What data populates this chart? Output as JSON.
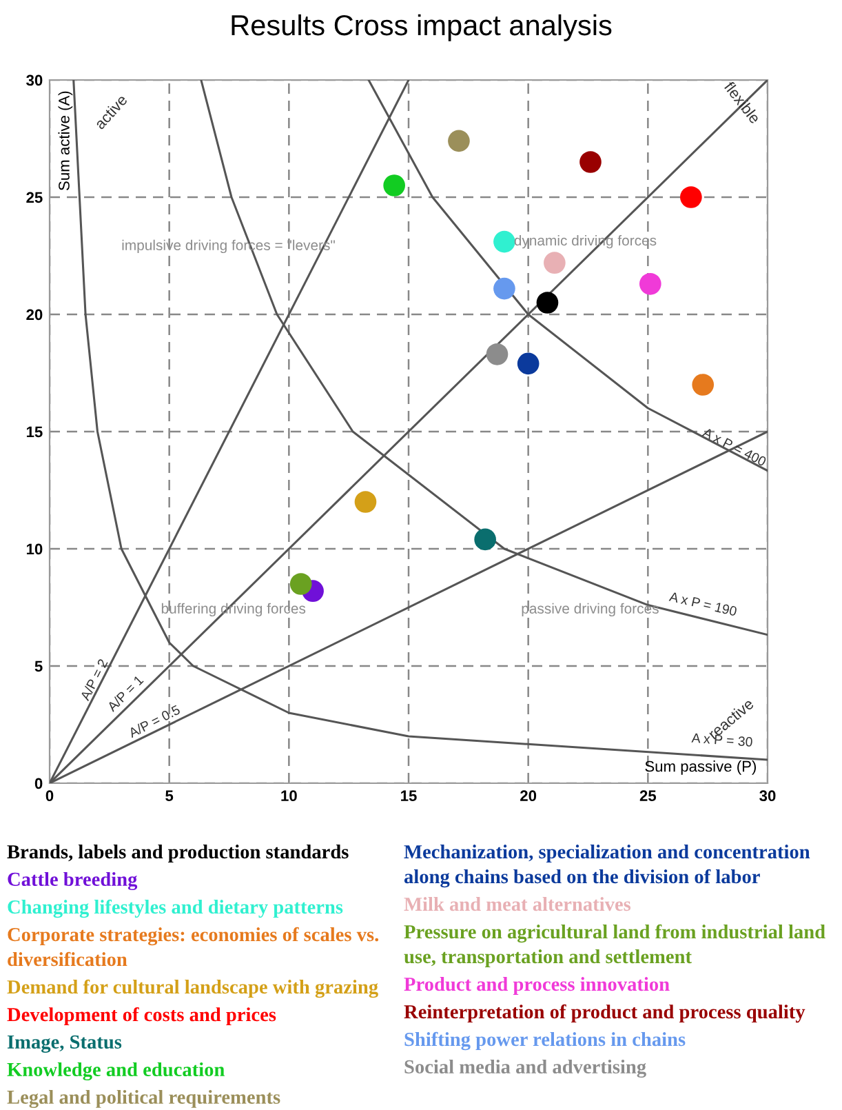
{
  "chart_data": {
    "type": "scatter",
    "title": "Results Cross impact analysis",
    "xlabel": "Sum passive (P)",
    "ylabel": "Sum active (A)",
    "xlim": [
      0,
      30
    ],
    "ylim": [
      0,
      30
    ],
    "xticks": [
      0,
      5,
      10,
      15,
      20,
      25,
      30
    ],
    "yticks": [
      0,
      5,
      10,
      15,
      20,
      25,
      30
    ],
    "grid": true,
    "legend": "bottom",
    "marker": "circle",
    "series": [
      {
        "name": "Brands, labels and production standards",
        "color": "#000000",
        "x": [
          20.8
        ],
        "values": [
          20.5
        ]
      },
      {
        "name": "Cattle breeding",
        "color": "#7010d8",
        "x": [
          11.0
        ],
        "values": [
          8.2
        ]
      },
      {
        "name": "Changing lifestyles and dietary patterns",
        "color": "#30f0d0",
        "x": [
          19.0
        ],
        "values": [
          23.1
        ]
      },
      {
        "name": "Corporate strategies: economies of scales vs. diversification",
        "color": "#e67a1e",
        "x": [
          27.3
        ],
        "values": [
          17.0
        ]
      },
      {
        "name": "Demand for cultural landscape with grazing",
        "color": "#d4a018",
        "x": [
          13.2
        ],
        "values": [
          12.0
        ]
      },
      {
        "name": "Development of costs and prices",
        "color": "#ff0000",
        "x": [
          26.8
        ],
        "values": [
          25.0
        ]
      },
      {
        "name": "Image, Status",
        "color": "#0a6e6e",
        "x": [
          18.2
        ],
        "values": [
          10.4
        ]
      },
      {
        "name": "Knowledge and education",
        "color": "#12cc22",
        "x": [
          14.4
        ],
        "values": [
          25.5
        ]
      },
      {
        "name": "Legal and political requirements",
        "color": "#9b8f5a",
        "x": [
          17.1
        ],
        "values": [
          27.4
        ]
      },
      {
        "name": "Mechanization, specialization and concentration along chains based on the division of labor",
        "color": "#0b3a9c",
        "x": [
          20.0
        ],
        "values": [
          17.9
        ]
      },
      {
        "name": "Milk and meat alternatives",
        "color": "#e8b0b4",
        "x": [
          21.1
        ],
        "values": [
          22.2
        ]
      },
      {
        "name": "Pressure on agricultural land from industrial land use, transportation and settlement",
        "color": "#6aa121",
        "x": [
          10.5
        ],
        "values": [
          8.5
        ]
      },
      {
        "name": "Product and process innovation",
        "color": "#f03ad8",
        "x": [
          25.1
        ],
        "values": [
          21.3
        ]
      },
      {
        "name": "Reinterpretation of product and process quality",
        "color": "#990000",
        "x": [
          22.6
        ],
        "values": [
          26.5
        ]
      },
      {
        "name": "Shifting power relations in chains",
        "color": "#6699ee",
        "x": [
          19.0
        ],
        "values": [
          21.1
        ]
      },
      {
        "name": "Social media and advertising",
        "color": "#8c8c8c",
        "x": [
          18.7
        ],
        "values": [
          18.3
        ]
      },
      {
        "type": "line",
        "color": "#555555",
        "marker": "none",
        "x": [
          1,
          1.5,
          2,
          3,
          5,
          6,
          10,
          15,
          30
        ],
        "values": [
          30,
          20,
          15,
          10,
          6,
          5,
          3,
          2,
          1
        ]
      },
      {
        "type": "line",
        "color": "#555555",
        "marker": "none",
        "x": [
          6.33,
          7.6,
          9.5,
          12.67,
          19,
          25,
          30
        ],
        "values": [
          30,
          25,
          20,
          15,
          10,
          7.6,
          6.33
        ]
      },
      {
        "type": "line",
        "color": "#555555",
        "marker": "none",
        "x": [
          13.33,
          16,
          20,
          25,
          30
        ],
        "values": [
          30,
          25,
          20,
          16,
          13.33
        ]
      },
      {
        "type": "line",
        "color": "#555555",
        "marker": "none",
        "x": [
          0,
          15
        ],
        "values": [
          0,
          30
        ]
      },
      {
        "type": "line",
        "color": "#555555",
        "marker": "none",
        "x": [
          0,
          30
        ],
        "values": [
          0,
          30
        ]
      },
      {
        "type": "line",
        "color": "#555555",
        "marker": "none",
        "x": [
          0,
          30
        ],
        "values": [
          0,
          15
        ]
      }
    ],
    "annotations": [
      "active",
      "flexible",
      "reactive",
      "impulsive driving forces = \"levers\"",
      "dynamic driving forces",
      "buffering driving forces",
      "passive driving forces",
      "A x P = 400",
      "A x P = 190",
      "A x P = 30",
      "A/P = 2",
      "A/P = 1",
      "A/P = 0.5"
    ]
  }
}
